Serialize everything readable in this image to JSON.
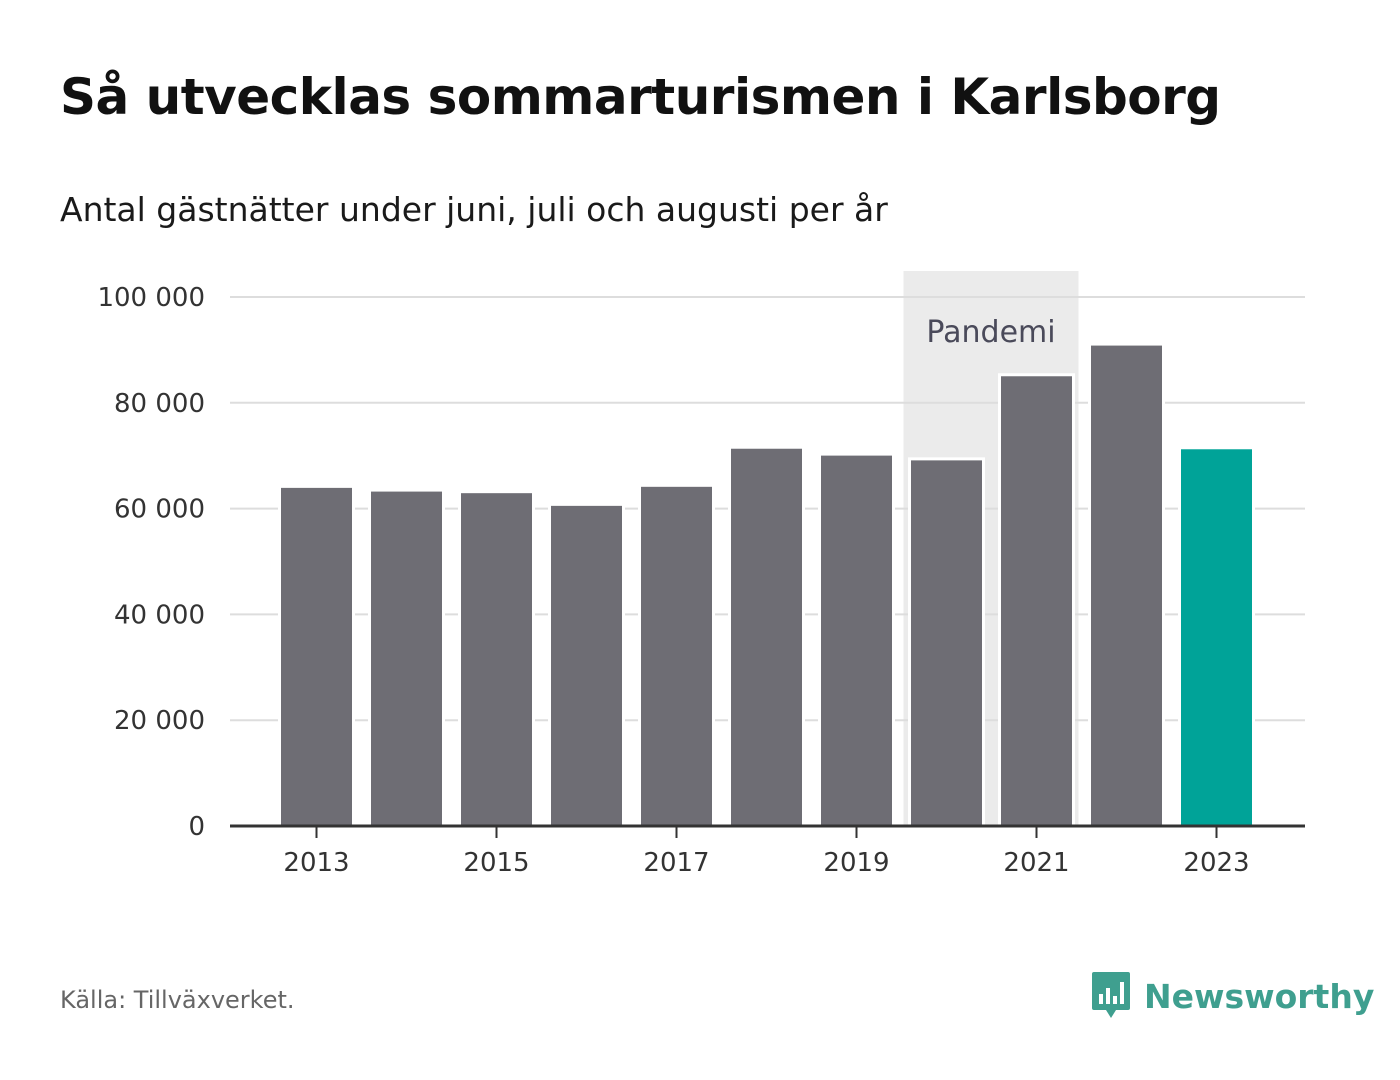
{
  "title": "Så utvecklas sommarturismen i Karlsborg",
  "subtitle": "Antal gästnätter under juni, juli och augusti per år",
  "source": "Källa: Tillväxverket.",
  "brand": {
    "name": "Newsworthy",
    "icon": "bar-chart-speech-bubble-icon",
    "color": "#3f9f8f"
  },
  "colors": {
    "bar": "#6e6d74",
    "highlight": "#00a398",
    "annotation_band": "#ebebeb",
    "grid": "#dddddd",
    "axis": "#333333"
  },
  "chart_data": {
    "type": "bar",
    "x": [
      2013,
      2014,
      2015,
      2016,
      2017,
      2018,
      2019,
      2020,
      2021,
      2022,
      2023
    ],
    "values": [
      64200,
      63500,
      63200,
      60800,
      64400,
      71600,
      70300,
      69400,
      85300,
      91100,
      71500
    ],
    "highlight": [
      2023
    ],
    "ylim": [
      0,
      100000
    ],
    "yticks": [
      0,
      20000,
      40000,
      60000,
      80000,
      100000
    ],
    "ytick_labels": [
      "0",
      "20 000",
      "40 000",
      "60 000",
      "80 000",
      "100 000"
    ],
    "xticks": [
      2013,
      2015,
      2017,
      2019,
      2021,
      2023
    ],
    "xtick_labels": [
      "2013",
      "2015",
      "2017",
      "2019",
      "2021",
      "2023"
    ],
    "annotations": [
      {
        "label": "Pandemi",
        "x_start": 2020,
        "x_end": 2021
      }
    ],
    "grid": true,
    "xlabel": "",
    "ylabel": ""
  }
}
